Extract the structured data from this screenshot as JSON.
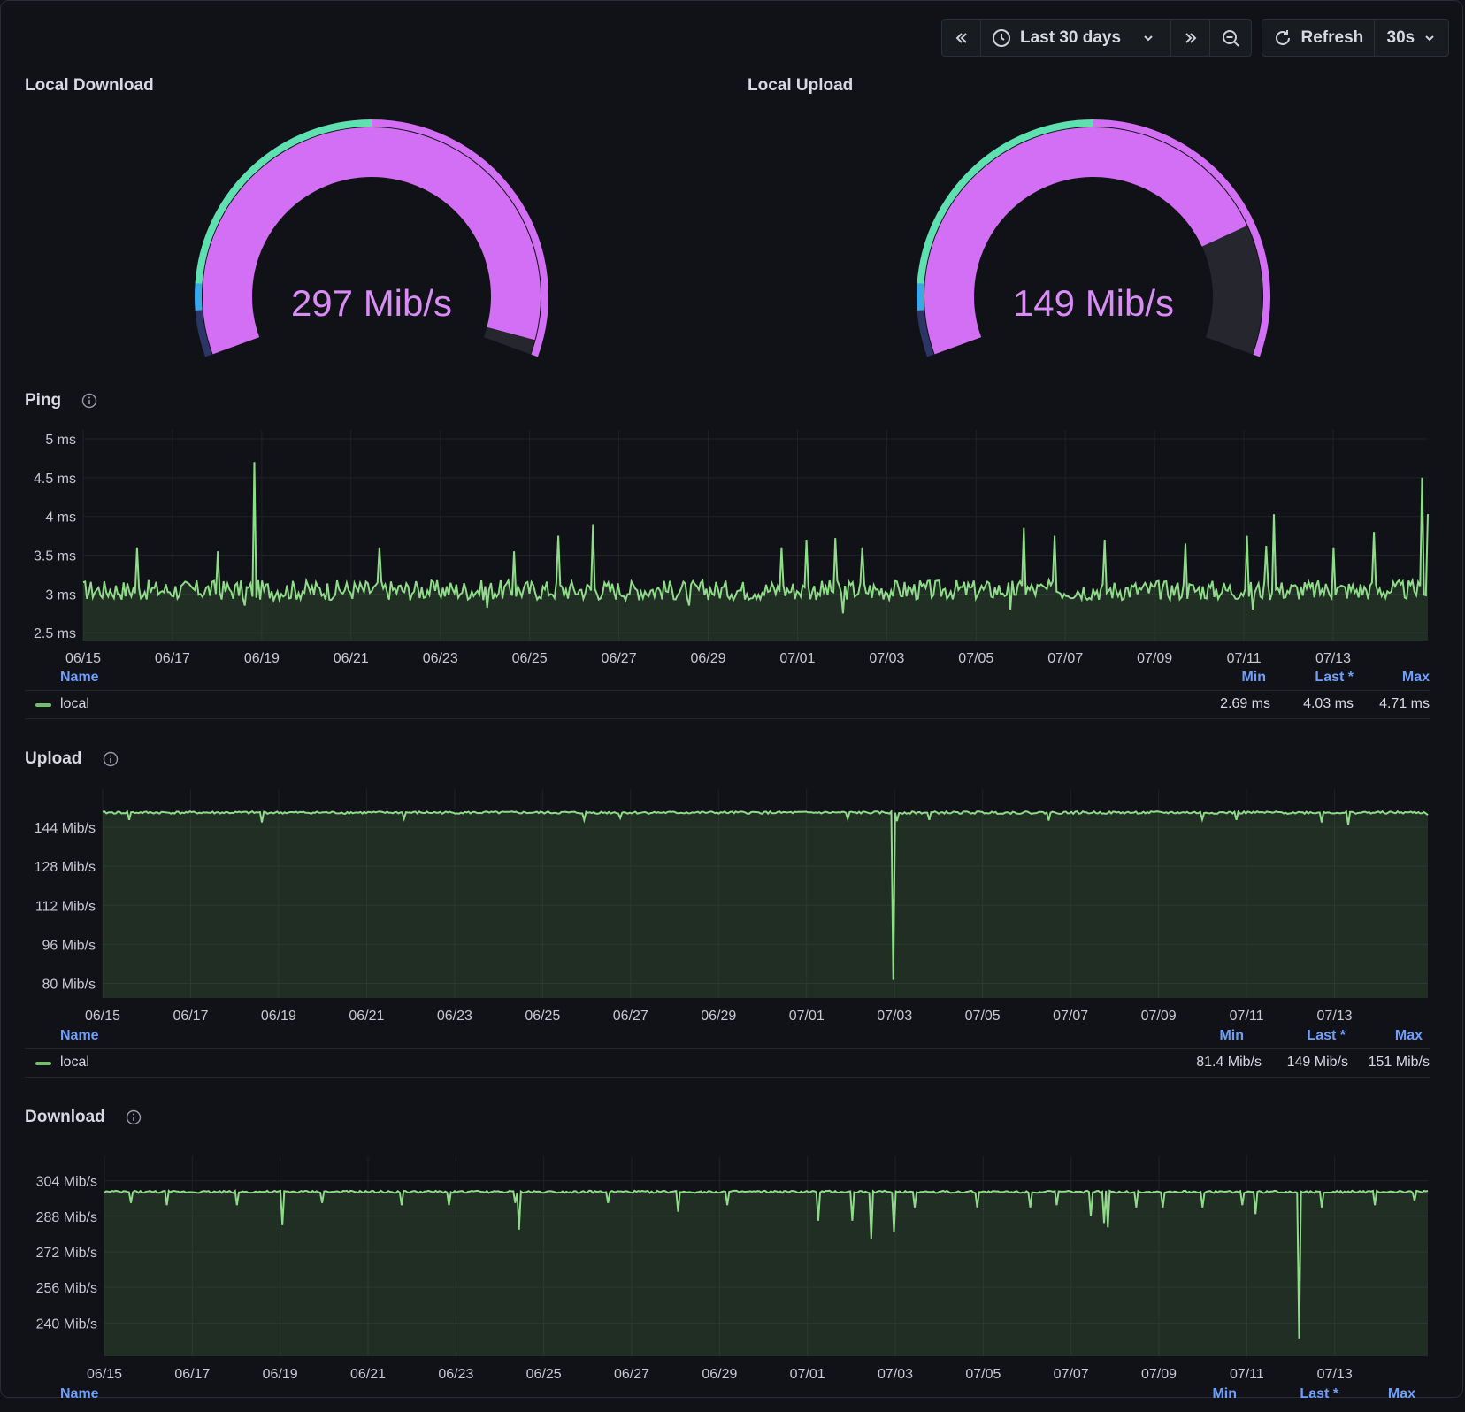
{
  "toolbar": {
    "time_range": "Last 30 days",
    "refresh_label": "Refresh",
    "interval": "30s",
    "icons": [
      "chevrons-left-icon",
      "clock-icon",
      "chevron-down-icon",
      "chevrons-right-icon",
      "zoom-out-icon",
      "refresh-icon",
      "chevron-down-icon"
    ]
  },
  "colors": {
    "background": "#111217",
    "gauge_fill": "#d26ff5",
    "gauge_text": "#d98cf5",
    "threshold_green": "#5fe0b1",
    "threshold_blue": "#3aa7e8",
    "series_line": "#8fdc88",
    "legend_header": "#6e9fff"
  },
  "gauges": [
    {
      "title": "Local Download",
      "value_text": "297 Mib/s",
      "value": 297,
      "max": 304
    },
    {
      "title": "Local Upload",
      "value_text": "149 Mib/s",
      "value": 149,
      "max": 187
    }
  ],
  "panels": {
    "ping": {
      "title": "Ping",
      "legend": {
        "name_header": "Name",
        "min_header": "Min",
        "last_header": "Last *",
        "max_header": "Max",
        "series": "local",
        "min": "2.69 ms",
        "last": "4.03 ms",
        "max": "4.71 ms"
      }
    },
    "upload": {
      "title": "Upload",
      "legend": {
        "name_header": "Name",
        "min_header": "Min",
        "last_header": "Last *",
        "max_header": "Max",
        "series": "local",
        "min": "81.4 Mib/s",
        "last": "149 Mib/s",
        "max": "151 Mib/s"
      }
    },
    "download": {
      "title": "Download",
      "legend": {
        "name_header": "Name",
        "min_header": "Min",
        "last_header": "Last *",
        "max_header": "Max"
      }
    }
  },
  "chart_data": [
    {
      "type": "line",
      "y_ticks": [
        "5 ms",
        "4.5 ms",
        "4 ms",
        "3.5 ms",
        "3 ms",
        "2.5 ms"
      ],
      "y_tick_values": [
        5,
        4.5,
        4,
        3.5,
        3,
        2.5
      ],
      "ylim": [
        2.4,
        5.0
      ],
      "x_ticks": [
        "06/15",
        "06/17",
        "06/19",
        "06/21",
        "06/23",
        "06/25",
        "06/27",
        "06/29",
        "07/01",
        "07/03",
        "07/05",
        "07/07",
        "07/09",
        "07/11",
        "07/13"
      ],
      "series": [
        {
          "name": "local",
          "baseline": 3.05,
          "min": 2.69,
          "max": 4.71,
          "last": 4.03,
          "spikes": [
            [
              0.127,
              4.7
            ],
            [
              0.995,
              4.5
            ],
            [
              0.885,
              4.03
            ],
            [
              0.379,
              3.9
            ],
            [
              0.7,
              3.85
            ],
            [
              0.96,
              3.8
            ],
            [
              0.354,
              3.75
            ],
            [
              0.723,
              3.75
            ],
            [
              0.865,
              3.75
            ],
            [
              0.538,
              3.7
            ],
            [
              0.76,
              3.7
            ],
            [
              0.56,
              3.72
            ],
            [
              0.22,
              3.6
            ],
            [
              0.58,
              3.6
            ],
            [
              0.88,
              3.62
            ],
            [
              0.04,
              3.6
            ],
            [
              0.1,
              3.55
            ],
            [
              0.32,
              3.55
            ],
            [
              0.52,
              3.6
            ],
            [
              0.82,
              3.65
            ],
            [
              0.93,
              3.6
            ]
          ],
          "dips": [
            [
              0.565,
              2.75
            ],
            [
              0.69,
              2.8
            ],
            [
              0.87,
              2.8
            ],
            [
              0.12,
              2.85
            ],
            [
              0.3,
              2.82
            ],
            [
              0.45,
              2.85
            ]
          ]
        }
      ]
    },
    {
      "type": "line",
      "y_ticks": [
        "144 Mib/s",
        "128 Mib/s",
        "112 Mib/s",
        "96 Mib/s",
        "80 Mib/s"
      ],
      "y_tick_values": [
        144,
        128,
        112,
        96,
        80
      ],
      "ylim": [
        74,
        156
      ],
      "x_ticks": [
        "06/15",
        "06/17",
        "06/19",
        "06/21",
        "06/23",
        "06/25",
        "06/27",
        "06/29",
        "07/01",
        "07/03",
        "07/05",
        "07/07",
        "07/09",
        "07/11",
        "07/13"
      ],
      "series": [
        {
          "name": "local",
          "baseline": 150,
          "min": 81.4,
          "max": 151,
          "last": 149,
          "dips": [
            [
              0.597,
              81.4
            ],
            [
              0.12,
              146
            ],
            [
              0.02,
              147
            ],
            [
              0.228,
              147.5
            ],
            [
              0.364,
              147
            ],
            [
              0.39,
              147.8
            ],
            [
              0.562,
              147.5
            ],
            [
              0.6,
              146.5
            ],
            [
              0.624,
              147
            ],
            [
              0.714,
              146.8
            ],
            [
              0.83,
              147.2
            ],
            [
              0.856,
              147
            ],
            [
              0.92,
              146
            ],
            [
              0.94,
              145
            ]
          ]
        }
      ]
    },
    {
      "type": "line",
      "y_ticks": [
        "304 Mib/s",
        "288 Mib/s",
        "272 Mib/s",
        "256 Mib/s",
        "240 Mib/s"
      ],
      "y_tick_values": [
        304,
        288,
        272,
        256,
        240
      ],
      "ylim": [
        225,
        311
      ],
      "x_ticks": [
        "06/15",
        "06/17",
        "06/19",
        "06/21",
        "06/23",
        "06/25",
        "06/27",
        "06/29",
        "07/01",
        "07/03",
        "07/05",
        "07/07",
        "07/09",
        "07/11",
        "07/13"
      ],
      "series": [
        {
          "name": "local",
          "baseline": 299,
          "dips": [
            [
              0.903,
              233
            ],
            [
              0.58,
              278
            ],
            [
              0.596,
              281
            ],
            [
              0.313,
              282
            ],
            [
              0.758,
              283
            ],
            [
              0.134,
              284
            ],
            [
              0.756,
              285
            ],
            [
              0.745,
              288
            ],
            [
              0.38,
              286
            ],
            [
              0.565,
              286
            ],
            [
              0.87,
              289
            ],
            [
              0.54,
              286
            ],
            [
              0.047,
              293
            ],
            [
              0.225,
              293
            ],
            [
              0.38,
              294
            ],
            [
              0.434,
              290
            ],
            [
              0.612,
              292
            ],
            [
              0.7,
              292
            ],
            [
              0.8,
              292
            ],
            [
              0.83,
              292
            ],
            [
              0.02,
              294
            ],
            [
              0.1,
              293
            ],
            [
              0.165,
              294
            ],
            [
              0.26,
              293
            ],
            [
              0.31,
              294
            ],
            [
              0.47,
              293
            ],
            [
              0.66,
              292
            ],
            [
              0.72,
              293
            ],
            [
              0.78,
              292
            ],
            [
              0.86,
              293
            ],
            [
              0.92,
              292
            ],
            [
              0.96,
              293
            ],
            [
              0.99,
              295
            ]
          ]
        }
      ]
    }
  ]
}
